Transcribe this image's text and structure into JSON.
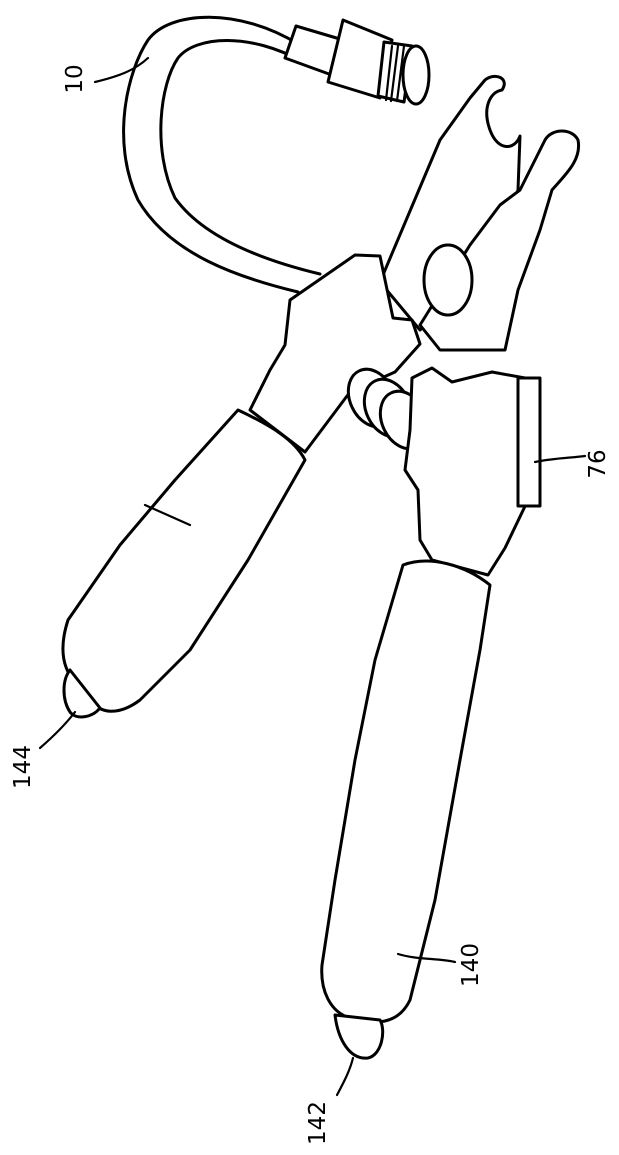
{
  "figure": {
    "labels": {
      "hose": "10",
      "clamp": "76",
      "upper_grip_tip": "144",
      "lower_grip_tip": "142",
      "lower_grip": "140"
    }
  }
}
